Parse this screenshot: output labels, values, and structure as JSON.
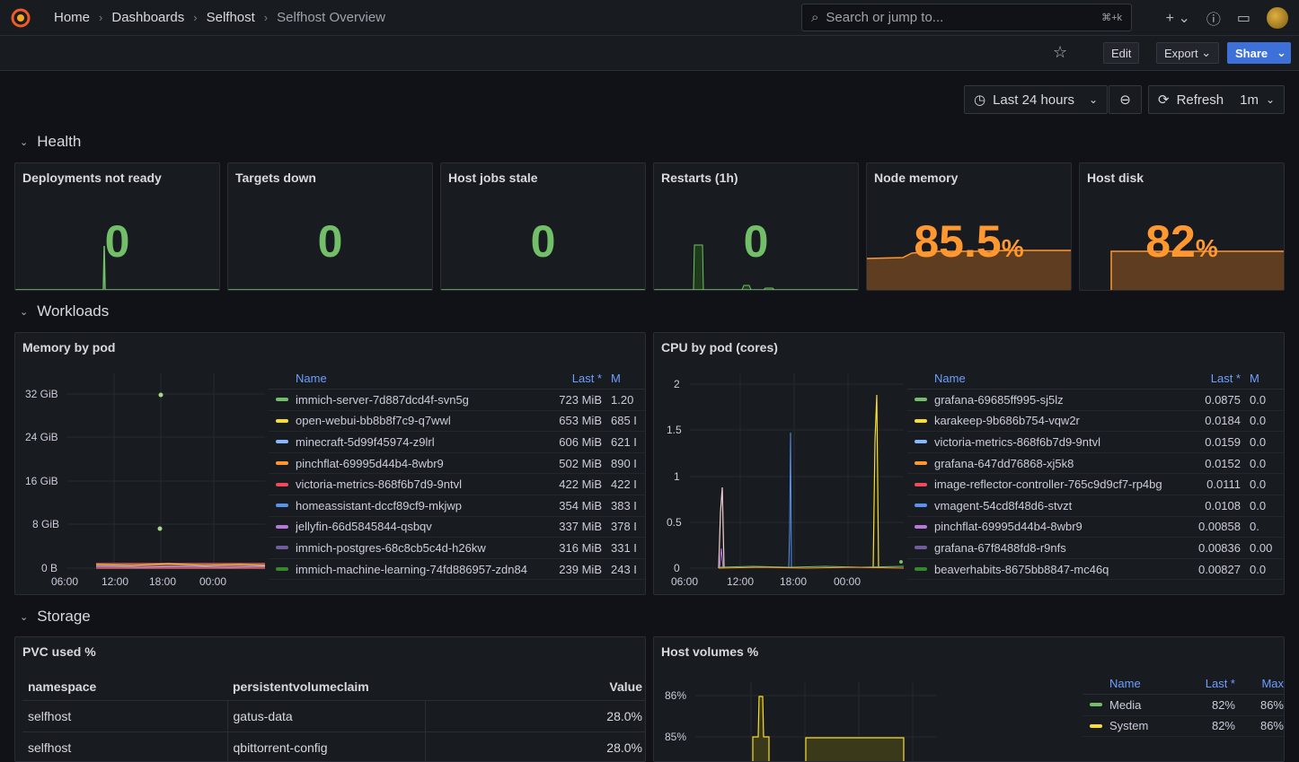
{
  "breadcrumb": [
    "Home",
    "Dashboards",
    "Selfhost",
    "Selfhost Overview"
  ],
  "search": {
    "placeholder": "Search or jump to...",
    "shortcut": "⌘+k"
  },
  "toolbar": {
    "edit": "Edit",
    "export": "Export",
    "share": "Share"
  },
  "timepicker": {
    "range": "Last 24 hours",
    "refresh": "Refresh",
    "interval": "1m"
  },
  "rows": {
    "health": "Health",
    "workloads": "Workloads",
    "storage": "Storage"
  },
  "stats": [
    {
      "title": "Deployments not ready",
      "value": "0",
      "unit": ""
    },
    {
      "title": "Targets down",
      "value": "0",
      "unit": ""
    },
    {
      "title": "Host jobs stale",
      "value": "0",
      "unit": ""
    },
    {
      "title": "Restarts (1h)",
      "value": "0",
      "unit": ""
    },
    {
      "title": "Node memory",
      "value": "85.5",
      "unit": "%"
    },
    {
      "title": "Host disk",
      "value": "82",
      "unit": "%"
    }
  ],
  "memory": {
    "title": "Memory by pod",
    "yticks": [
      "32 GiB",
      "24 GiB",
      "16 GiB",
      "8 GiB",
      "0 B"
    ],
    "xticks": [
      "06:00",
      "12:00",
      "18:00",
      "00:00"
    ],
    "legend_header": {
      "name": "Name",
      "last": "Last *",
      "max": "M"
    },
    "rows": [
      {
        "name": "immich-server-7d887dcd4f-svn5g",
        "last": "723 MiB",
        "max": "1.20",
        "color": "#73bf69"
      },
      {
        "name": "open-webui-bb8b8f7c9-q7wwl",
        "last": "653 MiB",
        "max": "685 I",
        "color": "#fade2a"
      },
      {
        "name": "minecraft-5d99f45974-z9lrl",
        "last": "606 MiB",
        "max": "621 I",
        "color": "#8ab8ff"
      },
      {
        "name": "pinchflat-69995d44b4-8wbr9",
        "last": "502 MiB",
        "max": "890 I",
        "color": "#ff9830"
      },
      {
        "name": "victoria-metrics-868f6b7d9-9ntvl",
        "last": "422 MiB",
        "max": "422 I",
        "color": "#f2495c"
      },
      {
        "name": "homeassistant-dccf89cf9-mkjwp",
        "last": "354 MiB",
        "max": "383 I",
        "color": "#5794f2"
      },
      {
        "name": "jellyfin-66d5845844-qsbqv",
        "last": "337 MiB",
        "max": "378 I",
        "color": "#b877d9"
      },
      {
        "name": "immich-postgres-68c8cb5c4d-h26kw",
        "last": "316 MiB",
        "max": "331 I",
        "color": "#705da0"
      },
      {
        "name": "immich-machine-learning-74fd886957-zdn84",
        "last": "239 MiB",
        "max": "243 I",
        "color": "#37872d"
      }
    ]
  },
  "cpu": {
    "title": "CPU by pod (cores)",
    "yticks": [
      "2",
      "1.5",
      "1",
      "0.5",
      "0"
    ],
    "xticks": [
      "06:00",
      "12:00",
      "18:00",
      "00:00"
    ],
    "legend_header": {
      "name": "Name",
      "last": "Last *",
      "max": "M"
    },
    "rows": [
      {
        "name": "grafana-69685ff995-sj5lz",
        "last": "0.0875",
        "max": "0.0",
        "color": "#73bf69"
      },
      {
        "name": "karakeep-9b686b754-vqw2r",
        "last": "0.0184",
        "max": "0.0",
        "color": "#fade2a"
      },
      {
        "name": "victoria-metrics-868f6b7d9-9ntvl",
        "last": "0.0159",
        "max": "0.0",
        "color": "#8ab8ff"
      },
      {
        "name": "grafana-647dd76868-xj5k8",
        "last": "0.0152",
        "max": "0.0",
        "color": "#ff9830"
      },
      {
        "name": "image-reflector-controller-765c9d9cf7-rp4bg",
        "last": "0.0111",
        "max": "0.0",
        "color": "#f2495c"
      },
      {
        "name": "vmagent-54cd8f48d6-stvzt",
        "last": "0.0108",
        "max": "0.0",
        "color": "#5794f2"
      },
      {
        "name": "pinchflat-69995d44b4-8wbr9",
        "last": "0.00858",
        "max": "0.",
        "color": "#b877d9"
      },
      {
        "name": "grafana-67f8488fd8-r9nfs",
        "last": "0.00836",
        "max": "0.00",
        "color": "#705da0"
      },
      {
        "name": "beaverhabits-8675bb8847-mc46q",
        "last": "0.00827",
        "max": "0.0",
        "color": "#37872d"
      }
    ]
  },
  "pvc": {
    "title": "PVC used %",
    "headers": [
      "namespace",
      "persistentvolumeclaim",
      "Value"
    ],
    "rows": [
      [
        "selfhost",
        "gatus-data",
        "28.0%"
      ],
      [
        "selfhost",
        "qbittorrent-config",
        "28.0%"
      ]
    ]
  },
  "hostvol": {
    "title": "Host volumes %",
    "yticks": [
      "86%",
      "85%"
    ],
    "legend_header": {
      "name": "Name",
      "last": "Last *",
      "max": "Max"
    },
    "rows": [
      {
        "name": "Media",
        "last": "82%",
        "max": "86%",
        "color": "#73bf69"
      },
      {
        "name": "System",
        "last": "82%",
        "max": "86%",
        "color": "#fade2a"
      }
    ]
  }
}
